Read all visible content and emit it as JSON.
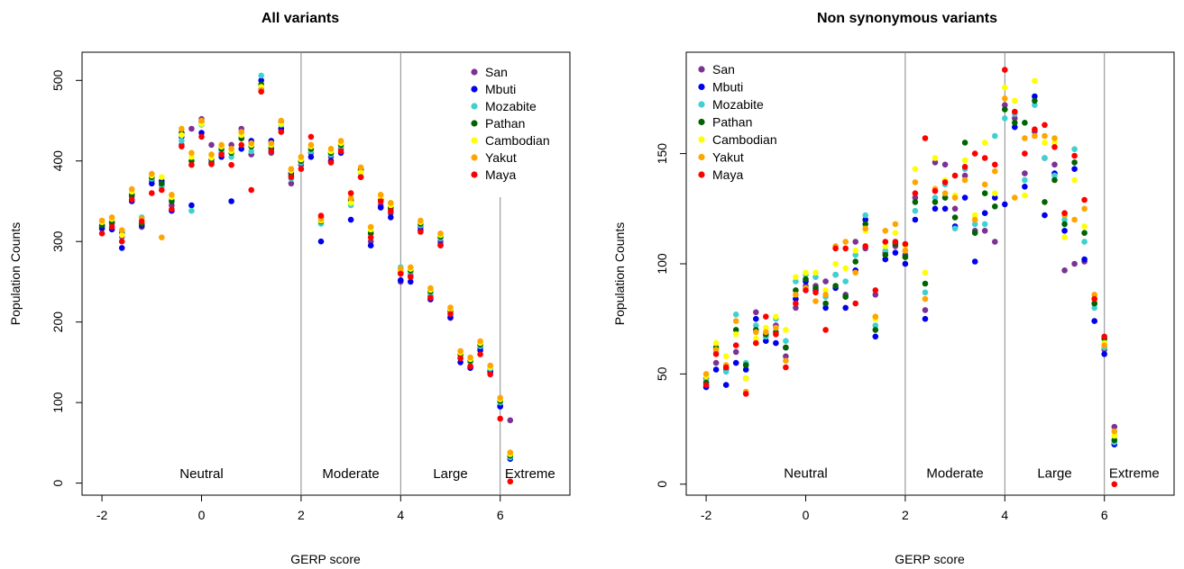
{
  "chart_data": [
    {
      "type": "scatter",
      "title": "All variants",
      "xlabel": "GERP score",
      "ylabel": "Population Counts",
      "xlim": [
        -2.4,
        7.4
      ],
      "ylim": [
        -15,
        535
      ],
      "xticks": [
        "-2",
        "0",
        "2",
        "4",
        "6"
      ],
      "yticks": [
        "0",
        "100",
        "200",
        "300",
        "400",
        "500"
      ],
      "dividers": [
        2,
        4,
        6
      ],
      "regions": [
        {
          "label": "Neutral",
          "x": 0,
          "y": 12
        },
        {
          "label": "Moderate",
          "x": 3,
          "y": 12
        },
        {
          "label": "Large",
          "x": 5,
          "y": 12
        },
        {
          "label": "Extreme",
          "x": 6.6,
          "y": 12
        }
      ],
      "legend_position": "top-right",
      "x": [
        -2.0,
        -1.8,
        -1.6,
        -1.4,
        -1.2,
        -1.0,
        -0.8,
        -0.6,
        -0.4,
        -0.2,
        0.0,
        0.2,
        0.4,
        0.6,
        0.8,
        1.0,
        1.2,
        1.4,
        1.6,
        1.8,
        2.0,
        2.2,
        2.4,
        2.6,
        2.8,
        3.0,
        3.2,
        3.4,
        3.6,
        3.8,
        4.0,
        4.2,
        4.4,
        4.6,
        4.8,
        5.0,
        5.2,
        5.4,
        5.6,
        5.8,
        6.0,
        6.2
      ],
      "series": [
        {
          "name": "San",
          "color": "#7b3294",
          "values": [
            318,
            322,
            306,
            356,
            318,
            376,
            370,
            345,
            420,
            440,
            452,
            420,
            410,
            420,
            440,
            408,
            490,
            410,
            440,
            372,
            395,
            410,
            330,
            405,
            415,
            350,
            388,
            300,
            345,
            335,
            250,
            258,
            318,
            232,
            300,
            205,
            155,
            145,
            168,
            140,
            96,
            78
          ]
        },
        {
          "name": "Mbuti",
          "color": "#0000ee",
          "values": [
            316,
            315,
            292,
            350,
            320,
            372,
            375,
            338,
            430,
            345,
            435,
            402,
            405,
            350,
            415,
            425,
            500,
            425,
            440,
            385,
            400,
            405,
            300,
            400,
            410,
            327,
            380,
            295,
            342,
            330,
            252,
            250,
            314,
            228,
            296,
            206,
            150,
            143,
            165,
            138,
            95,
            30
          ]
        },
        {
          "name": "Mozabite",
          "color": "#40d0d0",
          "values": [
            322,
            325,
            312,
            360,
            330,
            378,
            368,
            352,
            425,
            338,
            445,
            396,
            412,
            405,
            430,
            412,
            506,
            418,
            445,
            378,
            398,
            412,
            322,
            408,
            418,
            345,
            385,
            312,
            350,
            340,
            268,
            262,
            320,
            236,
            304,
            212,
            158,
            150,
            170,
            142,
            100,
            32
          ]
        },
        {
          "name": "Pathan",
          "color": "#006400",
          "values": [
            320,
            324,
            310,
            358,
            322,
            380,
            372,
            350,
            435,
            400,
            448,
            398,
            415,
            410,
            428,
            418,
            495,
            415,
            448,
            382,
            400,
            415,
            325,
            410,
            420,
            352,
            390,
            310,
            352,
            342,
            262,
            264,
            322,
            238,
            306,
            214,
            160,
            152,
            172,
            145,
            102,
            34
          ]
        },
        {
          "name": "Cambodian",
          "color": "#ffff00",
          "values": [
            324,
            328,
            308,
            362,
            325,
            382,
            380,
            355,
            432,
            405,
            446,
            404,
            418,
            412,
            432,
            420,
            492,
            420,
            446,
            388,
            402,
            418,
            326,
            412,
            422,
            348,
            386,
            315,
            355,
            345,
            264,
            266,
            324,
            240,
            308,
            216,
            162,
            154,
            174,
            144,
            104,
            36
          ]
        },
        {
          "name": "Yakut",
          "color": "#ffa500",
          "values": [
            326,
            330,
            314,
            365,
            328,
            384,
            305,
            358,
            440,
            410,
            450,
            408,
            420,
            415,
            436,
            422,
            488,
            422,
            450,
            390,
            405,
            420,
            328,
            415,
            425,
            354,
            392,
            318,
            358,
            348,
            266,
            268,
            326,
            242,
            310,
            218,
            164,
            156,
            176,
            146,
            106,
            38
          ]
        },
        {
          "name": "Maya",
          "color": "#ff0000",
          "values": [
            310,
            318,
            300,
            352,
            325,
            360,
            364,
            340,
            418,
            395,
            430,
            396,
            408,
            395,
            420,
            364,
            486,
            412,
            436,
            380,
            390,
            430,
            332,
            398,
            412,
            360,
            380,
            305,
            350,
            338,
            260,
            256,
            312,
            230,
            295,
            210,
            155,
            145,
            160,
            135,
            80,
            2
          ]
        }
      ]
    },
    {
      "type": "scatter",
      "title": "Non synonymous variants",
      "xlabel": "GERP score",
      "ylabel": "Population Counts",
      "xlim": [
        -2.4,
        7.4
      ],
      "ylim": [
        -5,
        196
      ],
      "xticks": [
        "-2",
        "0",
        "2",
        "4",
        "6"
      ],
      "yticks": [
        "0",
        "50",
        "100",
        "150"
      ],
      "dividers": [
        2,
        4,
        6
      ],
      "regions": [
        {
          "label": "Neutral",
          "x": 0,
          "y": 5
        },
        {
          "label": "Moderate",
          "x": 3,
          "y": 5
        },
        {
          "label": "Large",
          "x": 5,
          "y": 5
        },
        {
          "label": "Extreme",
          "x": 6.6,
          "y": 5
        }
      ],
      "legend_position": "top-left",
      "x": [
        -2.0,
        -1.8,
        -1.6,
        -1.4,
        -1.2,
        -1.0,
        -0.8,
        -0.6,
        -0.4,
        -0.2,
        0.0,
        0.2,
        0.4,
        0.6,
        0.8,
        1.0,
        1.2,
        1.4,
        1.6,
        1.8,
        2.0,
        2.2,
        2.4,
        2.6,
        2.8,
        3.0,
        3.2,
        3.4,
        3.6,
        3.8,
        4.0,
        4.2,
        4.4,
        4.6,
        4.8,
        5.0,
        5.2,
        5.4,
        5.6,
        5.8,
        6.0,
        6.2
      ],
      "series": [
        {
          "name": "San",
          "color": "#7b3294",
          "values": [
            48,
            55,
            52,
            60,
            48,
            78,
            67,
            72,
            58,
            80,
            90,
            90,
            92,
            95,
            86,
            110,
            107,
            86,
            105,
            108,
            104,
            130,
            79,
            146,
            145,
            125,
            140,
            115,
            115,
            110,
            172,
            166,
            141,
            160,
            148,
            145,
            97,
            100,
            101,
            82,
            61,
            26
          ]
        },
        {
          "name": "Mbuti",
          "color": "#0000ee",
          "values": [
            44,
            52,
            45,
            55,
            52,
            75,
            65,
            64,
            62,
            84,
            92,
            88,
            80,
            89,
            80,
            97,
            120,
            67,
            102,
            105,
            100,
            120,
            75,
            125,
            125,
            117,
            130,
            101,
            123,
            130,
            127,
            162,
            135,
            176,
            122,
            141,
            115,
            143,
            102,
            74,
            59,
            18
          ]
        },
        {
          "name": "Mozabite",
          "color": "#40d0d0",
          "values": [
            47,
            60,
            51,
            77,
            55,
            72,
            67,
            75,
            65,
            92,
            95,
            94,
            85,
            95,
            92,
            104,
            122,
            72,
            106,
            110,
            106,
            124,
            87,
            130,
            136,
            116,
            143,
            118,
            118,
            158,
            166,
            168,
            138,
            172,
            148,
            140,
            120,
            152,
            110,
            80,
            62,
            19
          ]
        },
        {
          "name": "Pathan",
          "color": "#006400",
          "values": [
            46,
            62,
            53,
            70,
            54,
            70,
            68,
            69,
            62,
            88,
            93,
            89,
            82,
            90,
            85,
            101,
            118,
            70,
            104,
            109,
            103,
            128,
            91,
            128,
            130,
            121,
            155,
            114,
            132,
            126,
            170,
            164,
            164,
            174,
            128,
            138,
            118,
            146,
            114,
            82,
            66,
            20
          ]
        },
        {
          "name": "Cambodian",
          "color": "#ffff00",
          "values": [
            49,
            64,
            58,
            68,
            48,
            66,
            71,
            76,
            70,
            94,
            96,
            96,
            88,
            100,
            98,
            106,
            115,
            75,
            108,
            114,
            108,
            143,
            96,
            148,
            138,
            131,
            147,
            122,
            155,
            132,
            180,
            174,
            131,
            183,
            155,
            155,
            112,
            138,
            117,
            85,
            64,
            22
          ]
        },
        {
          "name": "Yakut",
          "color": "#ffa500",
          "values": [
            50,
            61,
            54,
            74,
            42,
            69,
            69,
            71,
            56,
            86,
            89,
            83,
            86,
            108,
            110,
            96,
            116,
            76,
            115,
            118,
            106,
            137,
            84,
            134,
            132,
            130,
            138,
            120,
            136,
            142,
            175,
            130,
            157,
            158,
            158,
            157,
            122,
            120,
            125,
            86,
            63,
            24
          ]
        },
        {
          "name": "Maya",
          "color": "#ff0000",
          "values": [
            45,
            59,
            53,
            63,
            41,
            64,
            76,
            68,
            53,
            82,
            88,
            87,
            70,
            107,
            107,
            82,
            108,
            88,
            110,
            110,
            109,
            132,
            157,
            133,
            137,
            140,
            144,
            150,
            148,
            145,
            188,
            169,
            150,
            161,
            163,
            153,
            123,
            149,
            129,
            84,
            67,
            0
          ]
        }
      ]
    }
  ]
}
